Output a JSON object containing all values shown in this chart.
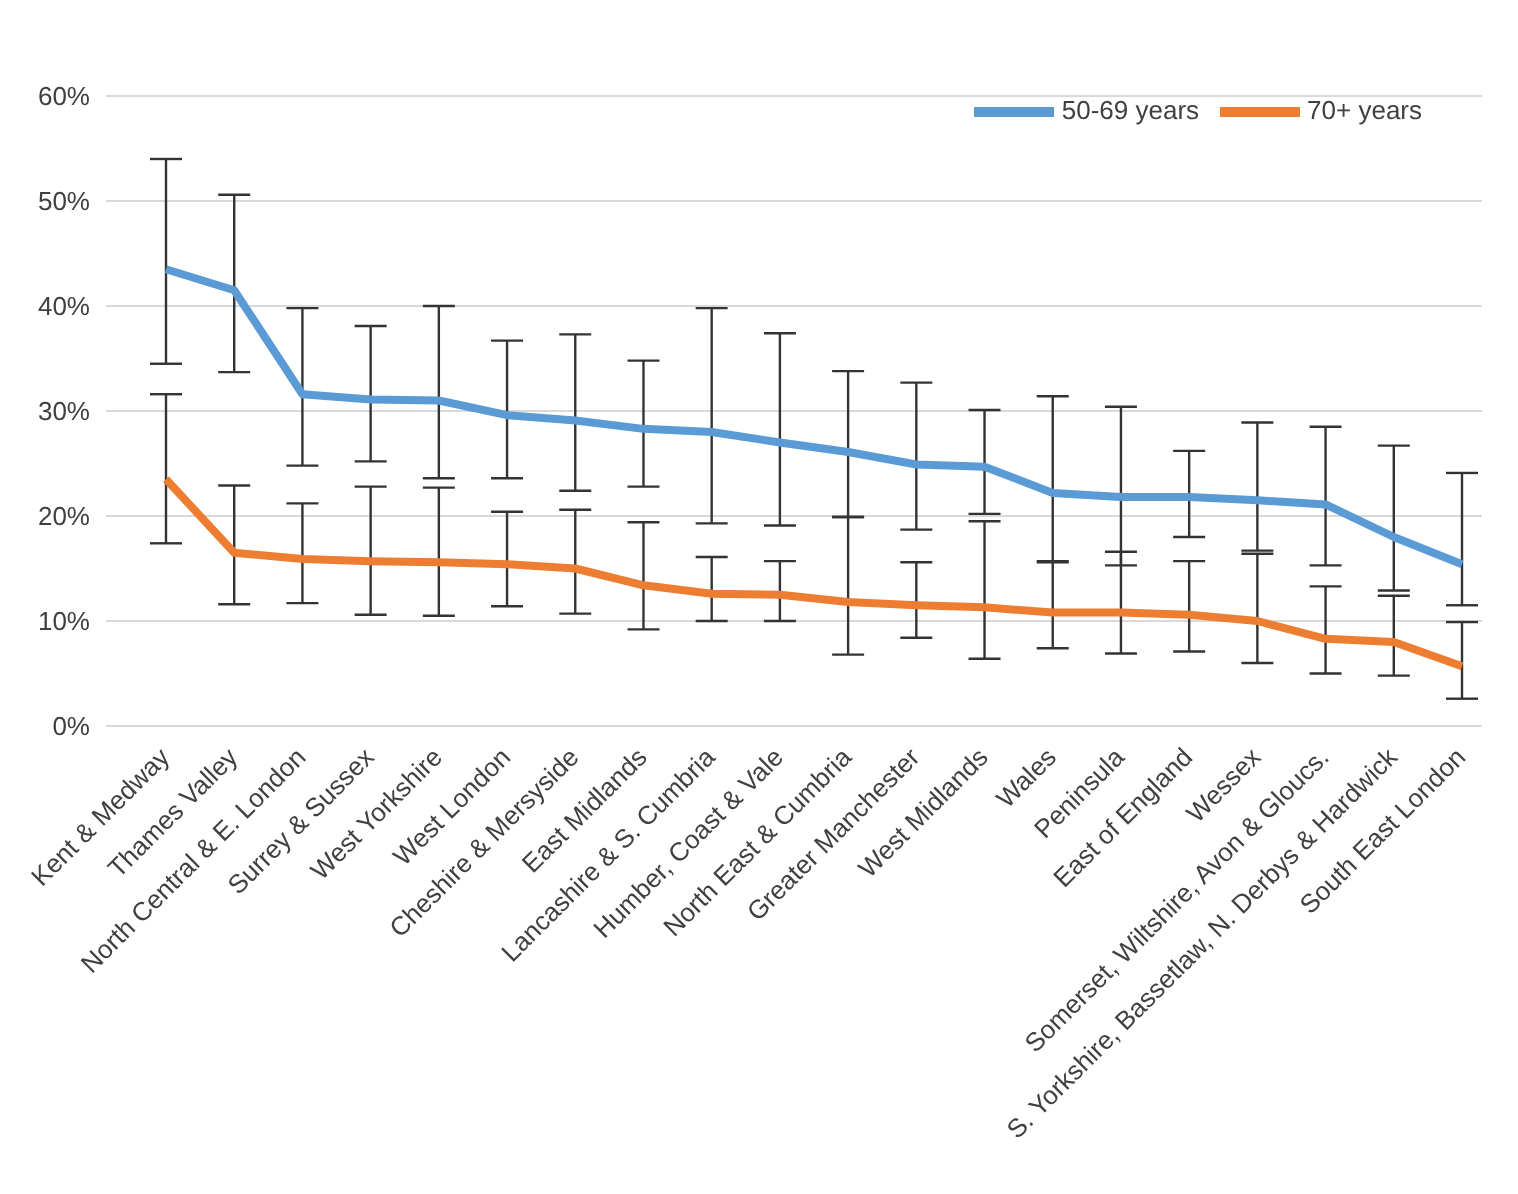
{
  "chart_data": {
    "type": "line",
    "categories": [
      "Kent & Medway",
      "Thames Valley",
      "North Central & E. London",
      "Surrey & Sussex",
      "West Yorkshire",
      "West London",
      "Cheshire & Mersyside",
      "East Midlands",
      "Lancashire & S. Cumbria",
      "Humber, Coast & Vale",
      "North East & Cumbria",
      "Greater Manchester",
      "West Midlands",
      "Wales",
      "Peninsula",
      "East of England",
      "Wessex",
      "Somerset, Wiltshire, Avon & Gloucs.",
      "S. Yorkshire, Bassetlaw, N. Derbys & Hardwick",
      "South East London"
    ],
    "series": [
      {
        "name": "50-69 years",
        "color": "#5b9bd5",
        "values": [
          43.5,
          41.5,
          31.6,
          31.1,
          31.0,
          29.6,
          29.1,
          28.3,
          28.0,
          27.0,
          26.1,
          24.9,
          24.7,
          22.2,
          21.8,
          21.8,
          21.5,
          21.1,
          18.0,
          15.4
        ],
        "errors": [
          [
            34.5,
            54
          ],
          [
            33.7,
            50.6
          ],
          [
            24.8,
            39.8
          ],
          [
            25.2,
            38.1
          ],
          [
            23.6,
            40.0
          ],
          [
            23.6,
            36.7
          ],
          [
            22.4,
            37.3
          ],
          [
            22.8,
            34.8
          ],
          [
            19.3,
            39.8
          ],
          [
            19.1,
            37.4
          ],
          [
            19.9,
            33.8
          ],
          [
            18.7,
            32.7
          ],
          [
            20.2,
            30.1
          ],
          [
            15.6,
            31.4
          ],
          [
            15.3,
            30.4
          ],
          [
            18.0,
            26.2
          ],
          [
            16.7,
            28.9
          ],
          [
            15.3,
            28.5
          ],
          [
            12.9,
            26.7
          ],
          [
            11.5,
            24.1
          ]
        ]
      },
      {
        "name": "70+ years",
        "color": "#ed7d31",
        "values": [
          23.5,
          16.5,
          15.9,
          15.7,
          15.6,
          15.4,
          15.0,
          13.4,
          12.6,
          12.5,
          11.8,
          11.5,
          11.3,
          10.8,
          10.8,
          10.6,
          10.0,
          8.3,
          8.0,
          5.7
        ],
        "errors": [
          [
            17.4,
            31.6
          ],
          [
            11.6,
            22.9
          ],
          [
            11.7,
            21.2
          ],
          [
            10.6,
            22.8
          ],
          [
            10.5,
            22.7
          ],
          [
            11.4,
            20.4
          ],
          [
            10.7,
            20.6
          ],
          [
            9.2,
            19.4
          ],
          [
            10.0,
            16.1
          ],
          [
            10.0,
            15.7
          ],
          [
            6.8,
            19.9
          ],
          [
            8.4,
            15.6
          ],
          [
            6.4,
            19.5
          ],
          [
            7.4,
            15.7
          ],
          [
            6.9,
            16.6
          ],
          [
            7.1,
            15.7
          ],
          [
            6.0,
            16.4
          ],
          [
            5.0,
            13.3
          ],
          [
            4.8,
            12.4
          ],
          [
            2.6,
            9.9
          ]
        ]
      }
    ],
    "ylim": [
      0,
      60
    ],
    "yticks": [
      {
        "value": 0,
        "label": "0%"
      },
      {
        "value": 10,
        "label": "10%"
      },
      {
        "value": 20,
        "label": "20%"
      },
      {
        "value": 30,
        "label": "30%"
      },
      {
        "value": 40,
        "label": "40%"
      },
      {
        "value": 50,
        "label": "50%"
      },
      {
        "value": 60,
        "label": "60%"
      }
    ],
    "grid": "y",
    "legend": "top right",
    "marker": "none",
    "line_style": "solid"
  }
}
